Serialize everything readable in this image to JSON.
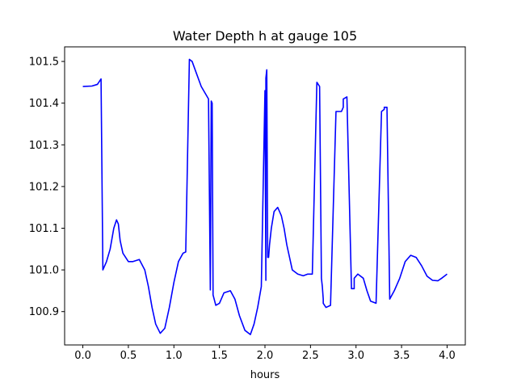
{
  "chart_data": {
    "type": "line",
    "title": "Water Depth h at gauge 105",
    "xlabel": "hours",
    "ylabel": "",
    "xlim": [
      -0.2,
      4.2
    ],
    "ylim": [
      100.82,
      101.535
    ],
    "xticks": [
      0.0,
      0.5,
      1.0,
      1.5,
      2.0,
      2.5,
      3.0,
      3.5,
      4.0
    ],
    "xtick_labels": [
      "0.0",
      "0.5",
      "1.0",
      "1.5",
      "2.0",
      "2.5",
      "3.0",
      "3.5",
      "4.0"
    ],
    "yticks": [
      100.9,
      101.0,
      101.1,
      101.2,
      101.3,
      101.4,
      101.5
    ],
    "ytick_labels": [
      "100.9",
      "101.0",
      "101.1",
      "101.2",
      "101.3",
      "101.4",
      "101.5"
    ],
    "grid": false,
    "series": [
      {
        "color": "#0000ff",
        "x": [
          0.0,
          0.1,
          0.16,
          0.2,
          0.22,
          0.22,
          0.26,
          0.3,
          0.34,
          0.37,
          0.39,
          0.41,
          0.44,
          0.5,
          0.55,
          0.62,
          0.68,
          0.72,
          0.76,
          0.8,
          0.85,
          0.9,
          0.95,
          1.0,
          1.05,
          1.1,
          1.13,
          1.17,
          1.17,
          1.2,
          1.25,
          1.3,
          1.38,
          1.4,
          1.41,
          1.42,
          1.43,
          1.43,
          1.46,
          1.5,
          1.55,
          1.62,
          1.67,
          1.72,
          1.78,
          1.84,
          1.88,
          1.92,
          1.96,
          2.0,
          2.01,
          2.01,
          2.02,
          2.03,
          2.04,
          2.05,
          2.05,
          2.07,
          2.1,
          2.14,
          2.18,
          2.21,
          2.24,
          2.3,
          2.36,
          2.42,
          2.47,
          2.52,
          2.57,
          2.6,
          2.62,
          2.62,
          2.63,
          2.64,
          2.64,
          2.67,
          2.72,
          2.78,
          2.84,
          2.86,
          2.86,
          2.9,
          2.95,
          2.98,
          2.98,
          3.02,
          3.08,
          3.12,
          3.16,
          3.22,
          3.28,
          3.31,
          3.31,
          3.34,
          3.37,
          3.37,
          3.42,
          3.48,
          3.54,
          3.6,
          3.66,
          3.72,
          3.78,
          3.84,
          3.9,
          3.94,
          3.97,
          4.0
        ],
        "y": [
          101.44,
          101.441,
          101.445,
          101.458,
          101.0,
          101.0,
          101.02,
          101.05,
          101.1,
          101.12,
          101.11,
          101.07,
          101.04,
          101.02,
          101.02,
          101.025,
          101.0,
          100.96,
          100.91,
          100.87,
          100.848,
          100.86,
          100.91,
          100.97,
          101.02,
          101.04,
          101.043,
          101.505,
          101.505,
          101.5,
          101.47,
          101.44,
          101.41,
          100.952,
          101.405,
          101.4,
          100.95,
          100.94,
          100.915,
          100.92,
          100.945,
          100.95,
          100.93,
          100.89,
          100.855,
          100.845,
          100.87,
          100.91,
          100.96,
          101.43,
          100.975,
          101.46,
          101.48,
          101.03,
          101.03,
          101.06,
          101.06,
          101.1,
          101.14,
          101.15,
          101.13,
          101.1,
          101.06,
          101.0,
          100.99,
          100.986,
          100.99,
          100.99,
          101.45,
          101.44,
          100.98,
          100.98,
          100.96,
          100.93,
          100.92,
          100.91,
          100.915,
          101.38,
          101.38,
          101.39,
          101.41,
          101.415,
          100.955,
          100.955,
          100.98,
          100.99,
          100.98,
          100.95,
          100.925,
          100.92,
          101.38,
          101.385,
          101.39,
          101.39,
          100.93,
          100.93,
          100.95,
          100.98,
          101.02,
          101.035,
          101.03,
          101.01,
          100.985,
          100.975,
          100.974,
          100.98,
          100.985,
          100.99
        ]
      }
    ]
  }
}
